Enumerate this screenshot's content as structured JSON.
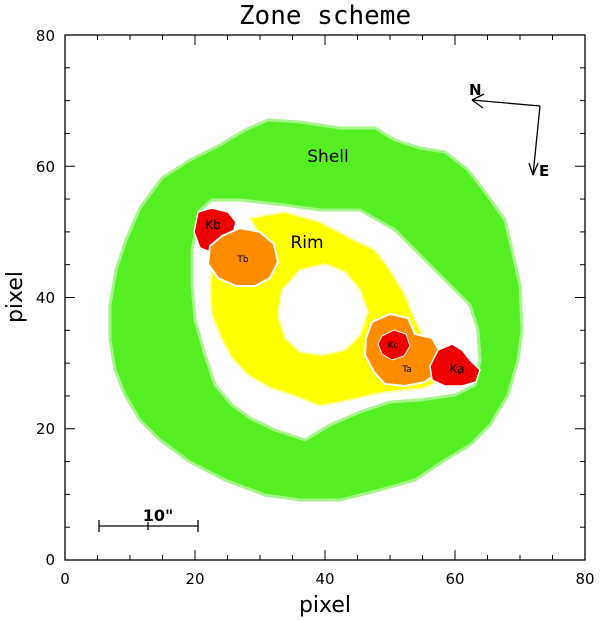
{
  "figure": {
    "title": "Zone scheme",
    "xlabel": "pixel",
    "ylabel": "pixel",
    "x_ticks": [
      "0",
      "20",
      "40",
      "60",
      "80"
    ],
    "y_ticks": [
      "0",
      "20",
      "40",
      "60",
      "80"
    ],
    "xlim": [
      0,
      80
    ],
    "ylim": [
      0,
      80
    ]
  },
  "zones": {
    "shell": "Shell",
    "rim": "Rim",
    "ka": "Ka",
    "kb": "Kb",
    "kc": "Kc",
    "ta": "Ta",
    "tb": "Tb"
  },
  "compass": {
    "north": "N",
    "east": "E"
  },
  "scale_bar": {
    "label": "10\""
  },
  "colors": {
    "shell": "#55ee22",
    "rim": "#ffff00",
    "knot_red": "#ee0000",
    "tail_orange": "#ff8c00"
  }
}
